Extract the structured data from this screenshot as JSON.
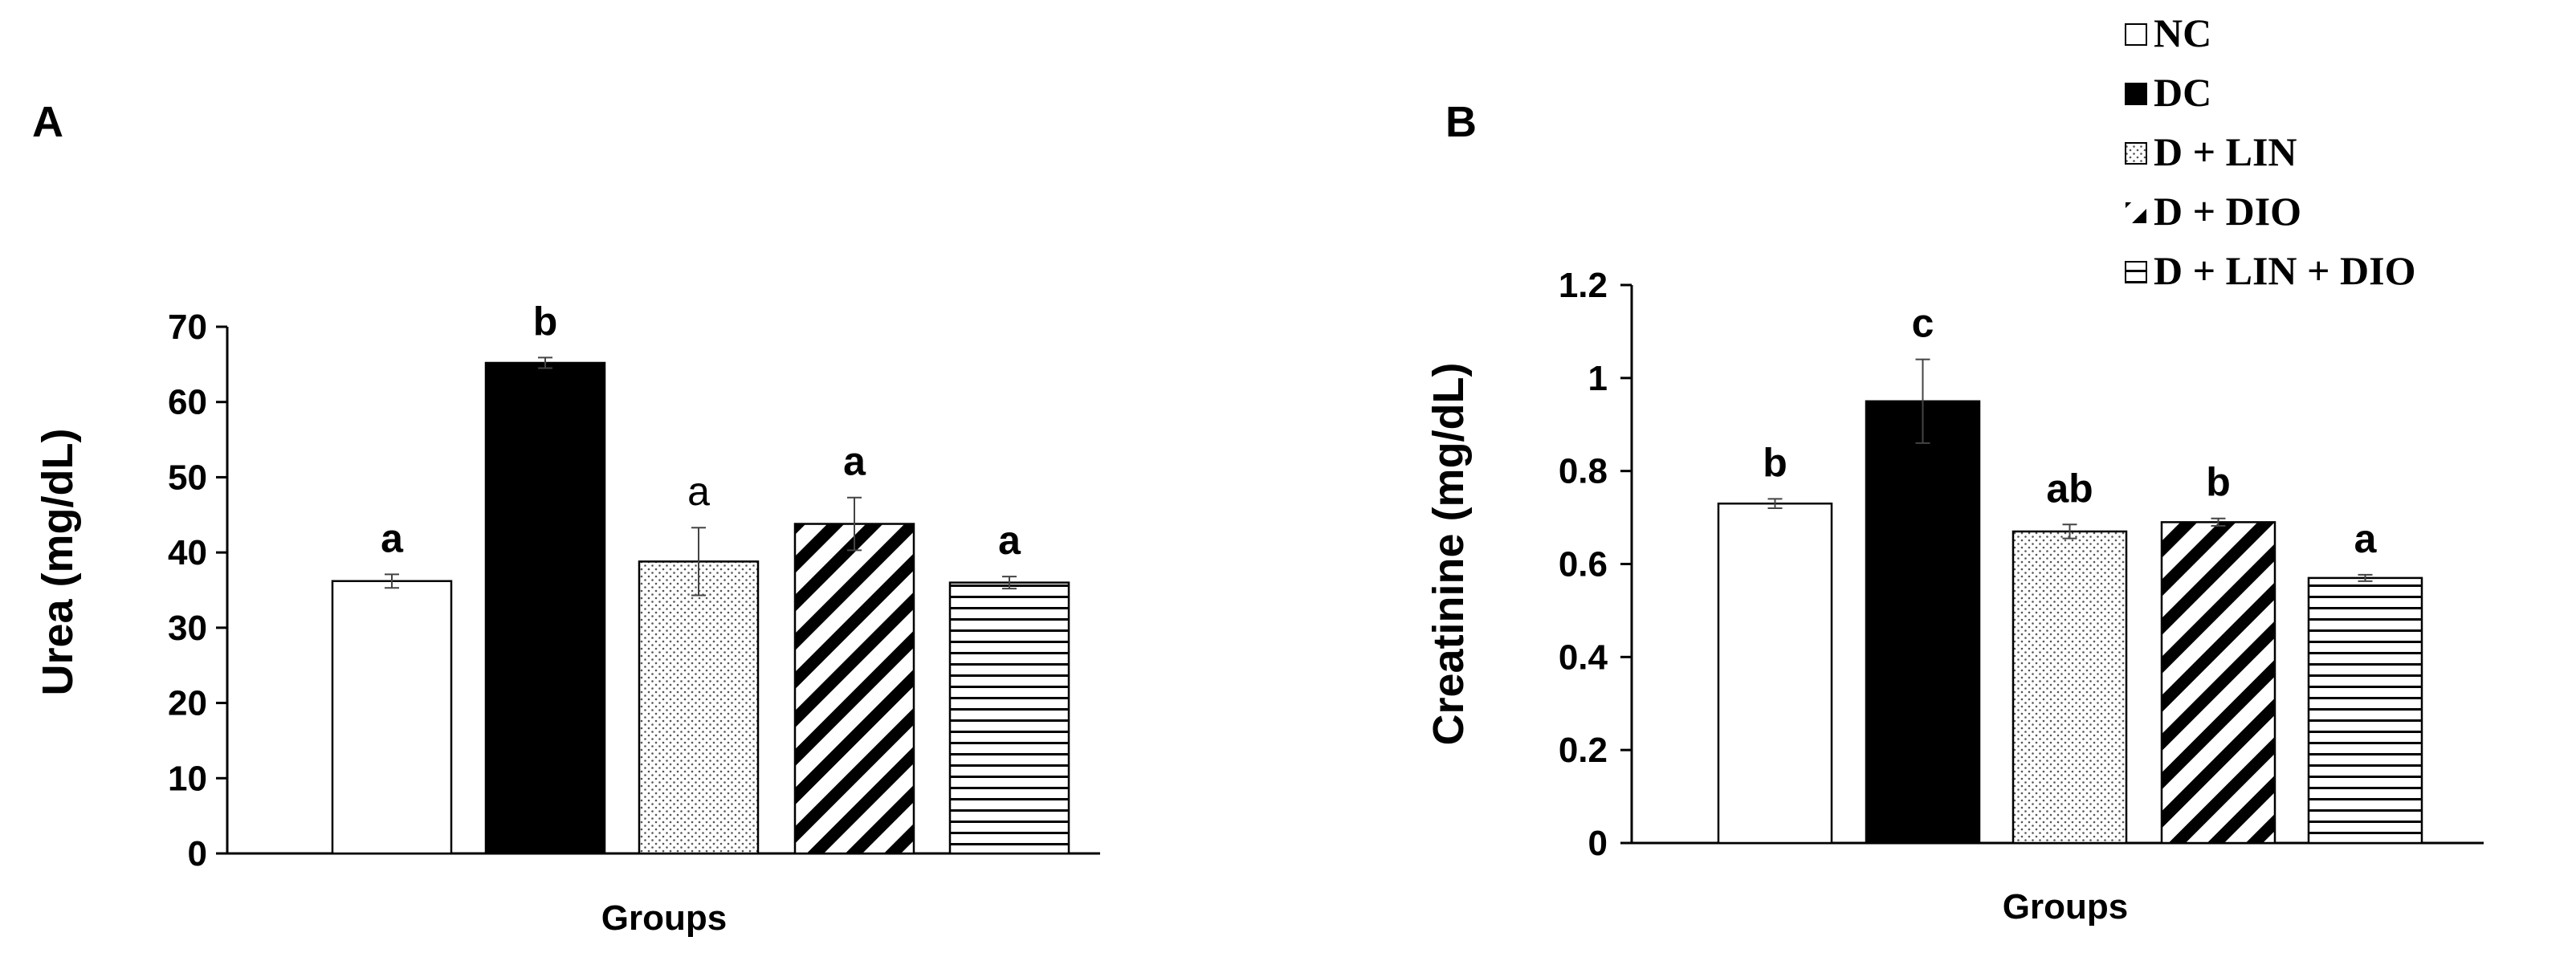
{
  "legend": {
    "items": [
      {
        "label": "NC",
        "pattern": "white"
      },
      {
        "label": "DC",
        "pattern": "black"
      },
      {
        "label": "D + LIN",
        "pattern": "dots"
      },
      {
        "label": "D + DIO",
        "pattern": "diagonal"
      },
      {
        "label": "D + LIN + DIO",
        "pattern": "horizontal"
      }
    ]
  },
  "chart_data": [
    {
      "type": "bar",
      "panel": "A",
      "title": "",
      "xlabel": "Groups",
      "ylabel": "Urea (mg/dL)",
      "ylim": [
        0,
        70
      ],
      "yticks": [
        0,
        10,
        20,
        30,
        40,
        50,
        60,
        70
      ],
      "categories": [
        "NC",
        "DC",
        "D + LIN",
        "D + DIO",
        "D + LIN + DIO"
      ],
      "values": [
        36.2,
        65.2,
        38.8,
        43.8,
        36.0
      ],
      "errors": [
        0.9,
        0.7,
        4.5,
        3.5,
        0.8
      ],
      "significance": [
        "a",
        "b",
        "a",
        "a",
        "a"
      ],
      "significance_bold": [
        true,
        true,
        false,
        true,
        true
      ],
      "grid": false
    },
    {
      "type": "bar",
      "panel": "B",
      "title": "",
      "xlabel": "Groups",
      "ylabel": "Creatinine (mg/dL)",
      "ylim": [
        0,
        1.2
      ],
      "yticks": [
        0,
        0.2,
        0.4,
        0.6,
        0.8,
        1,
        1.2
      ],
      "categories": [
        "NC",
        "DC",
        "D + LIN",
        "D + DIO",
        "D + LIN + DIO"
      ],
      "values": [
        0.73,
        0.95,
        0.67,
        0.69,
        0.57
      ],
      "errors": [
        0.01,
        0.09,
        0.015,
        0.008,
        0.007
      ],
      "significance": [
        "b",
        "c",
        "ab",
        "b",
        "a"
      ],
      "significance_bold": [
        true,
        true,
        true,
        true,
        true
      ],
      "grid": false
    }
  ]
}
